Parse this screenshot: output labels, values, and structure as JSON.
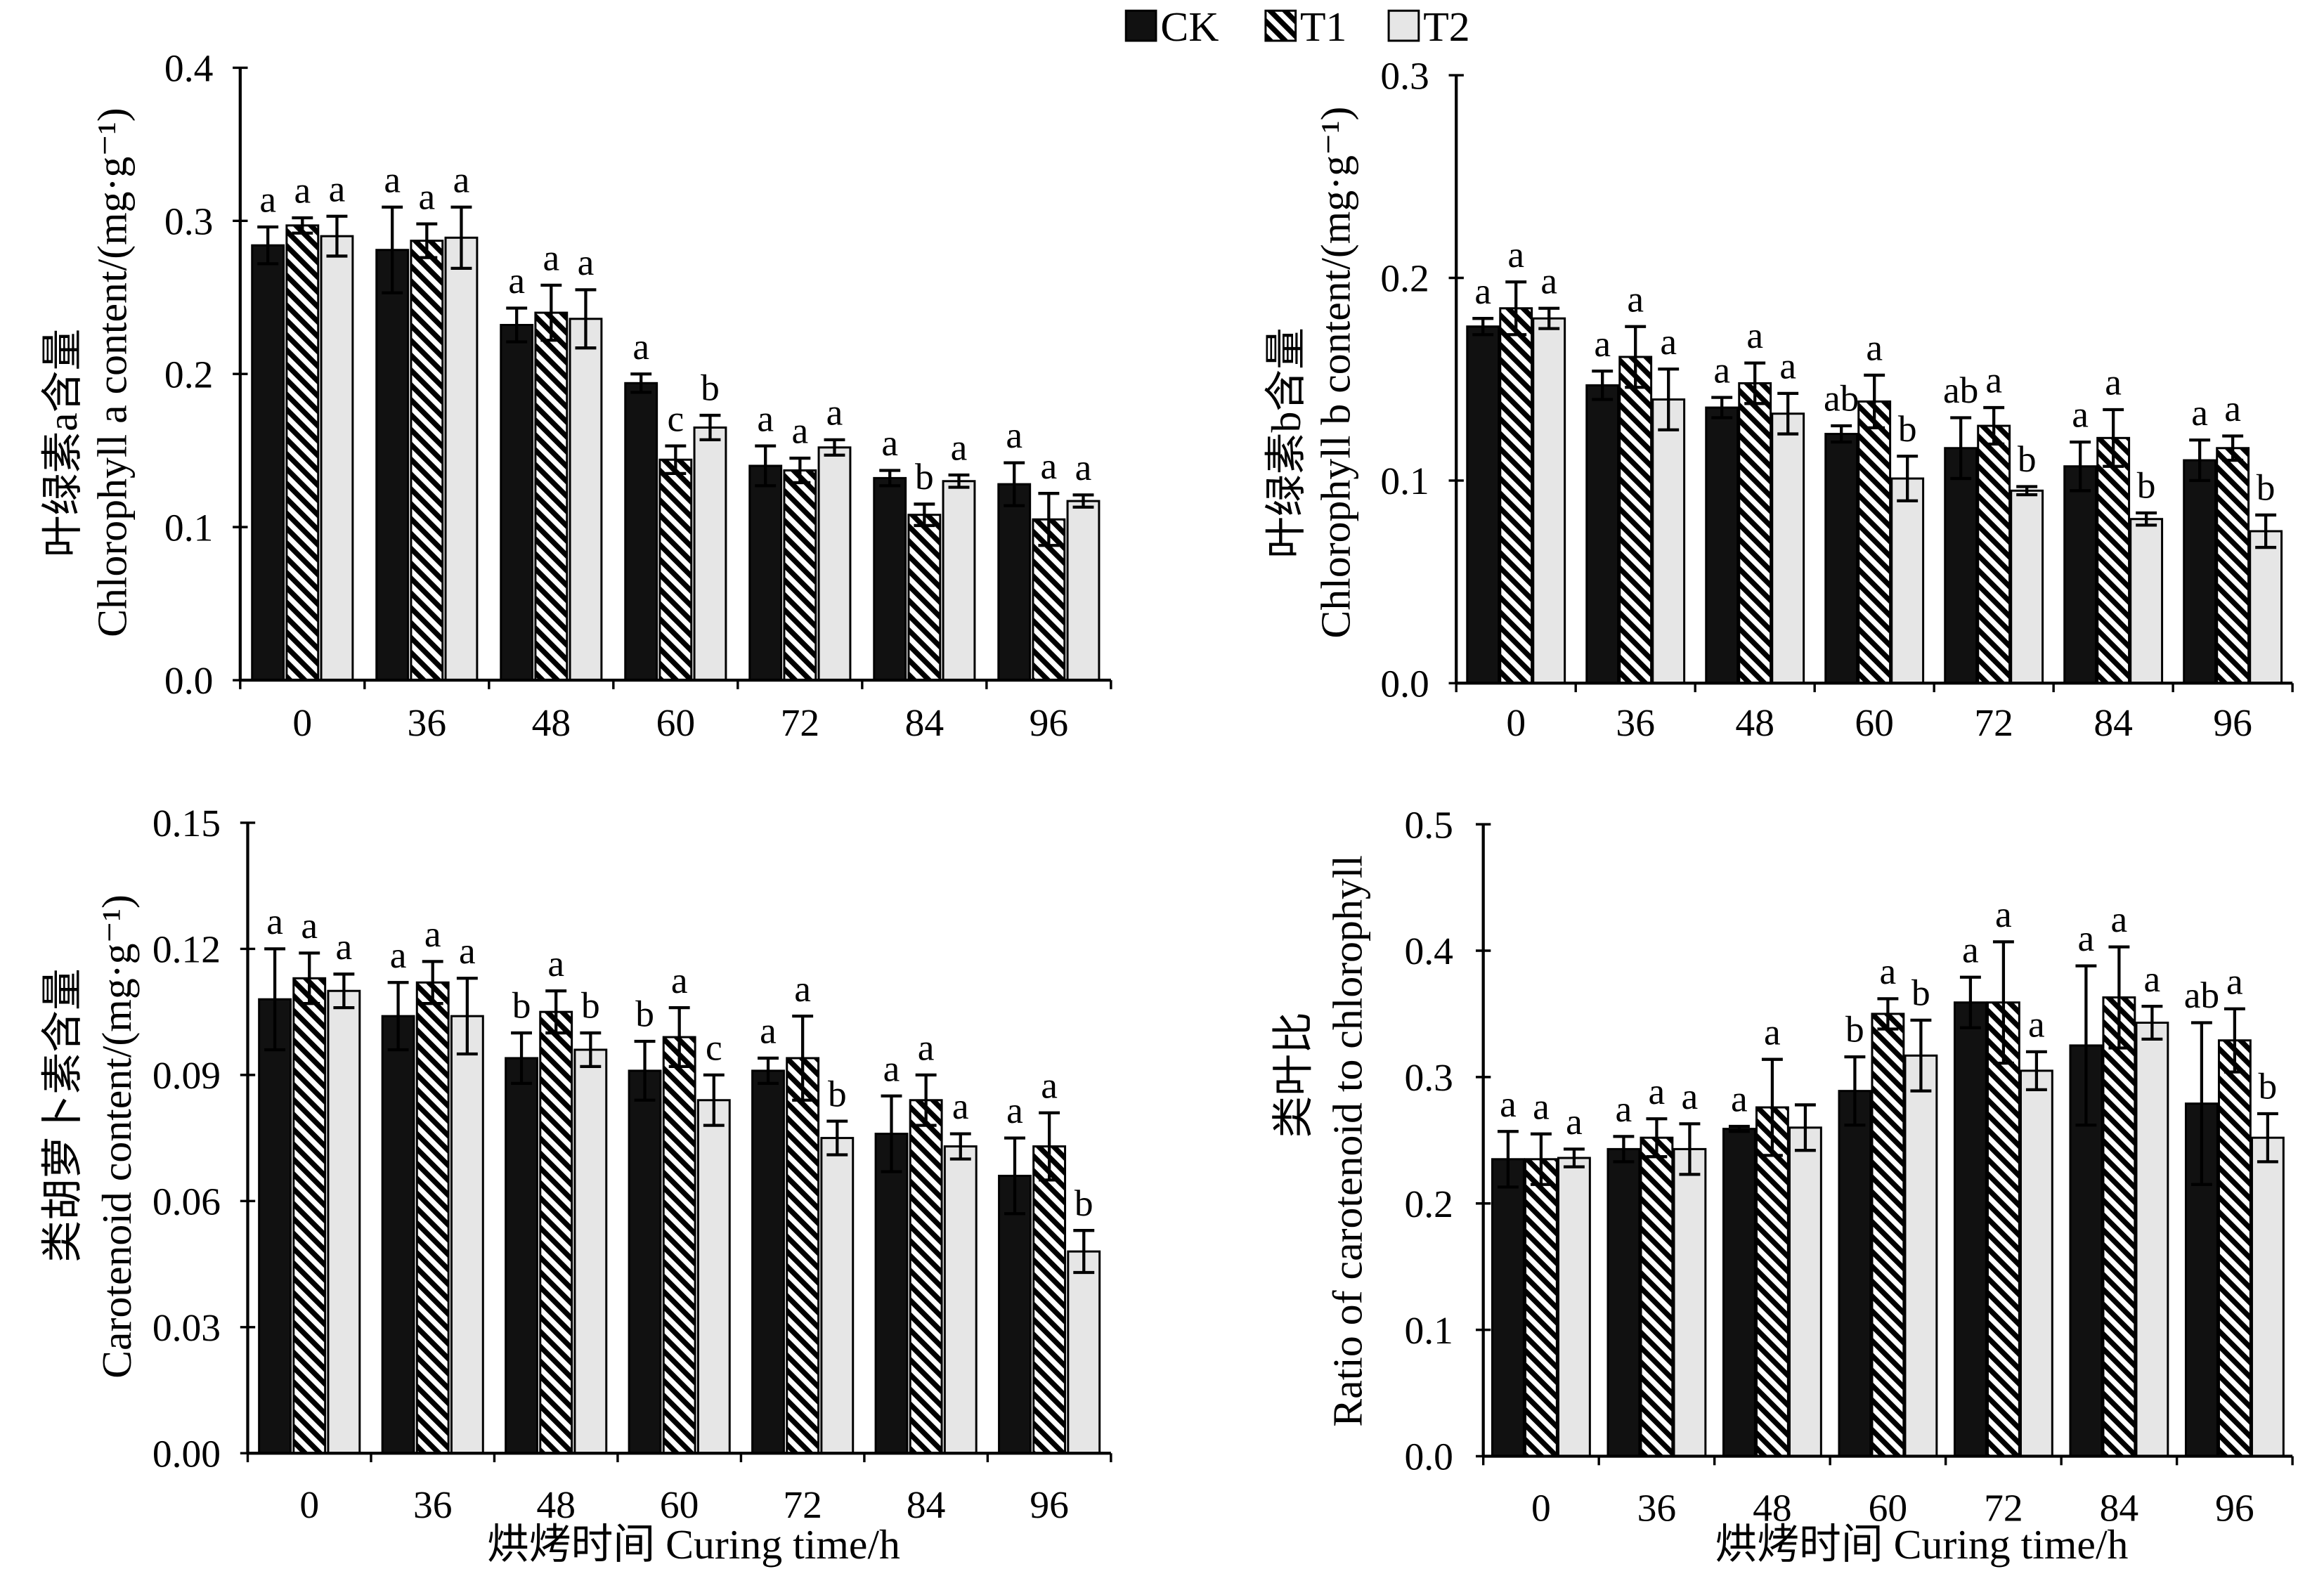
{
  "legend": {
    "position": "top-center",
    "items": [
      {
        "label": "CK",
        "fill": "#111111"
      },
      {
        "label": "T1",
        "fill": "#ffffff",
        "hatch": "#000000"
      },
      {
        "label": "T2",
        "fill": "#e6e6e6"
      }
    ]
  },
  "chart_data": [
    {
      "type": "bar",
      "ylabel_zh": "叶绿素a含量",
      "ylabel": "Chlorophyll a content/(mg·g⁻¹)",
      "categories": [
        "0",
        "36",
        "48",
        "60",
        "72",
        "84",
        "96"
      ],
      "ylim": [
        0,
        0.4
      ],
      "yticks": [
        "0.0",
        "0.1",
        "0.2",
        "0.3",
        "0.4"
      ],
      "grid": false,
      "series": [
        {
          "name": "CK",
          "values": [
            0.284,
            0.281,
            0.232,
            0.194,
            0.14,
            0.132,
            0.128
          ],
          "errors": [
            0.012,
            0.028,
            0.011,
            0.006,
            0.013,
            0.005,
            0.014
          ],
          "letters": [
            "a",
            "a",
            "a",
            "a",
            "a",
            "a",
            "a"
          ]
        },
        {
          "name": "T1",
          "values": [
            0.297,
            0.287,
            0.24,
            0.144,
            0.137,
            0.108,
            0.105
          ],
          "errors": [
            0.005,
            0.011,
            0.018,
            0.009,
            0.008,
            0.007,
            0.017
          ],
          "letters": [
            "a",
            "a",
            "a",
            "c",
            "a",
            "b",
            "a"
          ]
        },
        {
          "name": "T2",
          "values": [
            0.29,
            0.289,
            0.236,
            0.165,
            0.152,
            0.13,
            0.117
          ],
          "errors": [
            0.013,
            0.02,
            0.019,
            0.008,
            0.005,
            0.004,
            0.004
          ],
          "letters": [
            "a",
            "a",
            "a",
            "b",
            "a",
            "a",
            "a"
          ]
        }
      ]
    },
    {
      "type": "bar",
      "ylabel_zh": "叶绿素b含量",
      "ylabel": "Chlorophyll b content/(mg·g⁻¹)",
      "categories": [
        "0",
        "36",
        "48",
        "60",
        "72",
        "84",
        "96"
      ],
      "ylim": [
        0,
        0.3
      ],
      "yticks": [
        "0.0",
        "0.1",
        "0.2",
        "0.3"
      ],
      "grid": false,
      "series": [
        {
          "name": "CK",
          "values": [
            0.176,
            0.147,
            0.136,
            0.123,
            0.116,
            0.107,
            0.11
          ],
          "errors": [
            0.004,
            0.007,
            0.005,
            0.004,
            0.015,
            0.012,
            0.01
          ],
          "letters": [
            "a",
            "a",
            "a",
            "ab",
            "ab",
            "a",
            "a"
          ]
        },
        {
          "name": "T1",
          "values": [
            0.185,
            0.161,
            0.148,
            0.139,
            0.127,
            0.121,
            0.116
          ],
          "errors": [
            0.013,
            0.015,
            0.01,
            0.013,
            0.009,
            0.014,
            0.006
          ],
          "letters": [
            "a",
            "a",
            "a",
            "a",
            "a",
            "a",
            "a"
          ]
        },
        {
          "name": "T2",
          "values": [
            0.18,
            0.14,
            0.133,
            0.101,
            0.095,
            0.081,
            0.075
          ],
          "errors": [
            0.005,
            0.015,
            0.01,
            0.011,
            0.002,
            0.003,
            0.008
          ],
          "letters": [
            "a",
            "a",
            "a",
            "b",
            "b",
            "b",
            "b"
          ]
        }
      ]
    },
    {
      "type": "bar",
      "ylabel_zh": "类胡萝卜素含量",
      "ylabel": "Carotenoid content/(mg·g⁻¹)",
      "xlabel": "烘烤时间 Curing time/h",
      "categories": [
        "0",
        "36",
        "48",
        "60",
        "72",
        "84",
        "96"
      ],
      "ylim": [
        0,
        0.15
      ],
      "yticks": [
        "0.00",
        "0.03",
        "0.06",
        "0.09",
        "0.12",
        "0.15"
      ],
      "grid": false,
      "series": [
        {
          "name": "CK",
          "values": [
            0.108,
            0.104,
            0.094,
            0.091,
            0.091,
            0.076,
            0.066
          ],
          "errors": [
            0.012,
            0.008,
            0.006,
            0.007,
            0.003,
            0.009,
            0.009
          ],
          "letters": [
            "a",
            "a",
            "b",
            "b",
            "a",
            "a",
            "a"
          ]
        },
        {
          "name": "T1",
          "values": [
            0.113,
            0.112,
            0.105,
            0.099,
            0.094,
            0.084,
            0.073
          ],
          "errors": [
            0.006,
            0.005,
            0.005,
            0.007,
            0.01,
            0.006,
            0.008
          ],
          "letters": [
            "a",
            "a",
            "a",
            "a",
            "a",
            "a",
            "a"
          ]
        },
        {
          "name": "T2",
          "values": [
            0.11,
            0.104,
            0.096,
            0.084,
            0.075,
            0.073,
            0.048
          ],
          "errors": [
            0.004,
            0.009,
            0.004,
            0.006,
            0.004,
            0.003,
            0.005
          ],
          "letters": [
            "a",
            "a",
            "b",
            "c",
            "b",
            "a",
            "b"
          ]
        }
      ]
    },
    {
      "type": "bar",
      "ylabel_zh": "类叶比",
      "ylabel": "Ratio of carotenoid to chlorophyll",
      "xlabel": "烘烤时间 Curing time/h",
      "categories": [
        "0",
        "36",
        "48",
        "60",
        "72",
        "84",
        "96"
      ],
      "ylim": [
        0,
        0.5
      ],
      "yticks": [
        "0.0",
        "0.1",
        "0.2",
        "0.3",
        "0.4",
        "0.5"
      ],
      "grid": false,
      "series": [
        {
          "name": "CK",
          "values": [
            0.235,
            0.243,
            0.259,
            0.289,
            0.359,
            0.325,
            0.279
          ],
          "errors": [
            0.022,
            0.01,
            0.002,
            0.027,
            0.02,
            0.063,
            0.064
          ],
          "letters": [
            "a",
            "a",
            "a",
            "b",
            "a",
            "a",
            "ab"
          ]
        },
        {
          "name": "T1",
          "values": [
            0.235,
            0.252,
            0.276,
            0.35,
            0.359,
            0.363,
            0.329
          ],
          "errors": [
            0.02,
            0.015,
            0.038,
            0.012,
            0.048,
            0.04,
            0.025
          ],
          "letters": [
            "a",
            "a",
            "a",
            "a",
            "a",
            "a",
            "a"
          ]
        },
        {
          "name": "T2",
          "values": [
            0.236,
            0.243,
            0.26,
            0.317,
            0.305,
            0.343,
            0.252
          ],
          "errors": [
            0.007,
            0.02,
            0.018,
            0.028,
            0.015,
            0.013,
            0.019
          ],
          "letters": [
            "a",
            "a",
            "",
            "b",
            "a",
            "a",
            "b"
          ]
        }
      ]
    }
  ]
}
